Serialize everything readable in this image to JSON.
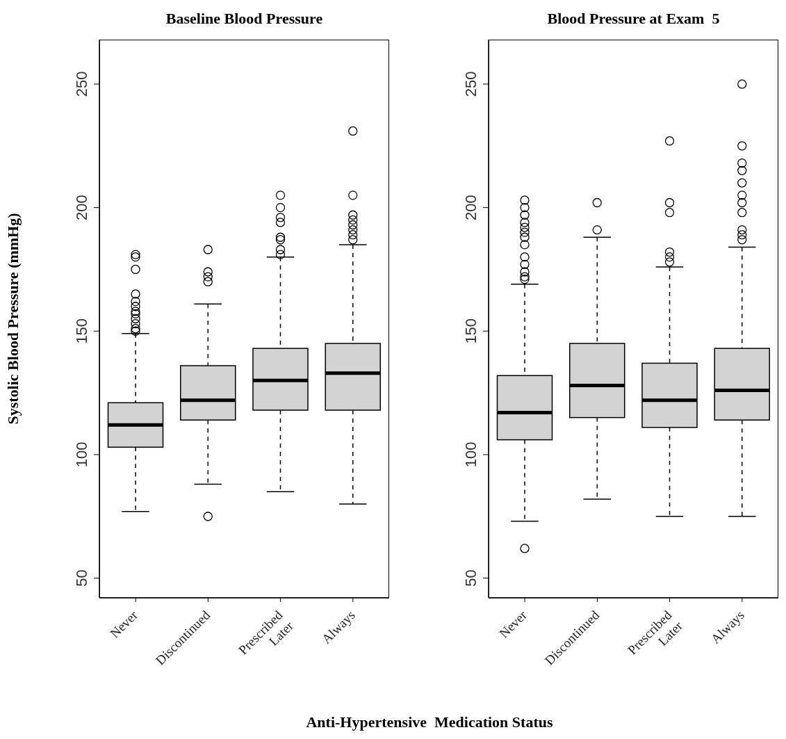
{
  "chart_data": [
    {
      "type": "box",
      "title": "Baseline Blood Pressure",
      "ylabel": "Systolic Blood Pressure (mmHg)",
      "xlabel": "Anti-Hypertensive  Medication Status",
      "color": "#d3d3d3",
      "categories": [
        "Never",
        "Discontinued",
        "Prescribed\nLater",
        "Always"
      ],
      "boxes": [
        {
          "low": 77,
          "q1": 103,
          "median": 112,
          "q3": 121,
          "high": 149,
          "outliers": [
            181,
            180,
            175,
            165,
            162,
            160,
            158,
            157,
            155,
            153,
            151,
            150
          ]
        },
        {
          "low": 88,
          "q1": 114,
          "median": 122,
          "q3": 136,
          "high": 161,
          "outliers": [
            183,
            174,
            172,
            170,
            75
          ]
        },
        {
          "low": 85,
          "q1": 118,
          "median": 130,
          "q3": 143,
          "high": 180,
          "outliers": [
            205,
            200,
            196,
            194,
            188,
            187,
            183,
            181
          ]
        },
        {
          "low": 80,
          "q1": 118,
          "median": 133,
          "q3": 145,
          "high": 185,
          "outliers": [
            231,
            205,
            197,
            195,
            193,
            191,
            189,
            187
          ]
        }
      ],
      "ylim": [
        42,
        268
      ],
      "yticks": [
        50,
        100,
        150,
        200,
        250
      ]
    },
    {
      "type": "box",
      "title": "Blood Pressure at Exam  5",
      "color": "#d3d3d3",
      "categories": [
        "Never",
        "Discontinued",
        "Prescribed\nLater",
        "Always"
      ],
      "boxes": [
        {
          "low": 73,
          "q1": 106,
          "median": 117,
          "q3": 132,
          "high": 169,
          "outliers": [
            203,
            200,
            197,
            194,
            192,
            190,
            188,
            185,
            180,
            177,
            174,
            172,
            171,
            62
          ]
        },
        {
          "low": 82,
          "q1": 115,
          "median": 128,
          "q3": 145,
          "high": 188,
          "outliers": [
            202,
            191
          ]
        },
        {
          "low": 75,
          "q1": 111,
          "median": 122,
          "q3": 137,
          "high": 176,
          "outliers": [
            227,
            202,
            198,
            182,
            180,
            178
          ]
        },
        {
          "low": 75,
          "q1": 114,
          "median": 126,
          "q3": 143,
          "high": 184,
          "outliers": [
            250,
            225,
            218,
            215,
            210,
            205,
            202,
            198,
            191,
            189,
            187
          ]
        }
      ],
      "ylim": [
        42,
        268
      ],
      "yticks": [
        50,
        100,
        150,
        200,
        250
      ]
    }
  ]
}
